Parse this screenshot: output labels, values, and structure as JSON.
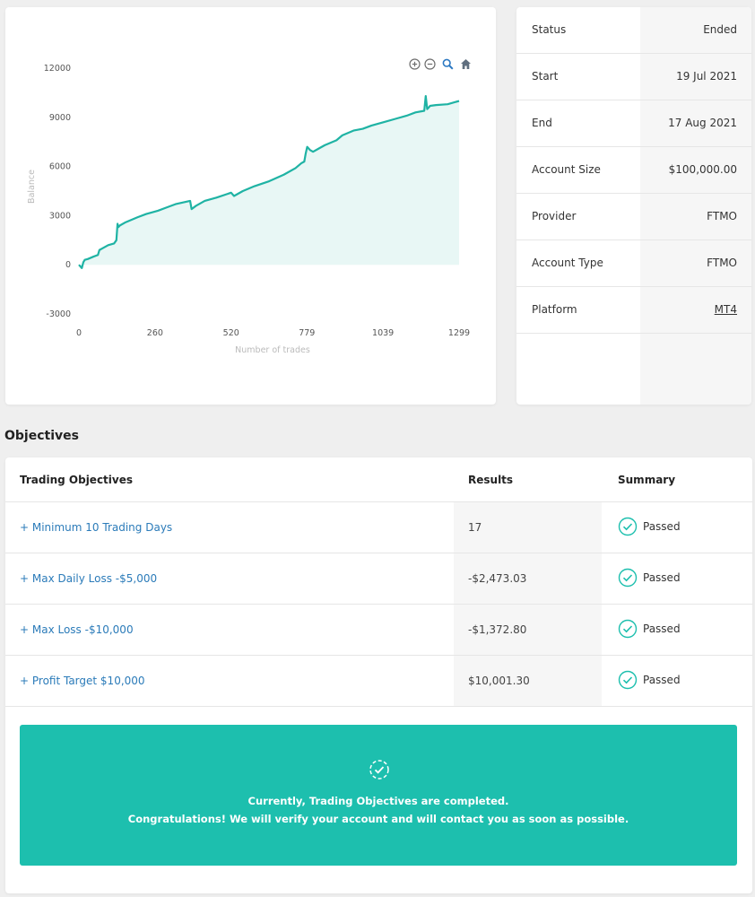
{
  "chart_toolbar": {
    "icons": [
      "zoom-in-icon",
      "zoom-out-icon",
      "zoom-select-icon",
      "reset-home-icon"
    ]
  },
  "chart_data": {
    "type": "area",
    "xlabel": "Number of trades",
    "ylabel": "Balance",
    "xlim": [
      0,
      1299
    ],
    "ylim": [
      -3000,
      12000
    ],
    "x_ticks": [
      "0",
      "260",
      "520",
      "779",
      "1039",
      "1299"
    ],
    "y_ticks": [
      "12000",
      "9000",
      "6000",
      "3000",
      "0",
      "-3000"
    ],
    "line_color": "#1fb3a4",
    "fill_color": "#e8f7f5",
    "series": [
      {
        "x": [
          0,
          10,
          15,
          20,
          30,
          50,
          65,
          70,
          80,
          100,
          120,
          128,
          132,
          135,
          140,
          160,
          200,
          230,
          270,
          300,
          330,
          380,
          385,
          400,
          430,
          470,
          520,
          530,
          560,
          600,
          650,
          700,
          740,
          760,
          770,
          775,
          780,
          790,
          800,
          820,
          840,
          880,
          900,
          940,
          970,
          1000,
          1040,
          1080,
          1120,
          1150,
          1180,
          1185,
          1190,
          1195,
          1200,
          1220,
          1260,
          1299
        ],
        "y": [
          0,
          -200,
          150,
          300,
          350,
          500,
          600,
          900,
          1000,
          1200,
          1300,
          1500,
          2500,
          2300,
          2400,
          2600,
          2900,
          3100,
          3300,
          3500,
          3700,
          3900,
          3400,
          3600,
          3900,
          4100,
          4400,
          4200,
          4500,
          4800,
          5100,
          5500,
          5900,
          6200,
          6300,
          6800,
          7200,
          7000,
          6900,
          7100,
          7300,
          7600,
          7900,
          8200,
          8300,
          8500,
          8700,
          8900,
          9100,
          9300,
          9400,
          10300,
          9500,
          9600,
          9700,
          9750,
          9800,
          10000
        ]
      }
    ]
  },
  "account_info": {
    "rows": [
      {
        "label": "Status",
        "value": "Ended"
      },
      {
        "label": "Start",
        "value": "19 Jul 2021"
      },
      {
        "label": "End",
        "value": "17 Aug 2021"
      },
      {
        "label": "Account Size",
        "value": "$100,000.00"
      },
      {
        "label": "Provider",
        "value": "FTMO"
      },
      {
        "label": "Account Type",
        "value": "FTMO"
      },
      {
        "label": "Platform",
        "value": "MT4"
      }
    ]
  },
  "objectives": {
    "heading": "Objectives",
    "columns": {
      "objective": "Trading Objectives",
      "results": "Results",
      "summary": "Summary"
    },
    "rows": [
      {
        "name": "+ Minimum 10 Trading Days",
        "result": "17",
        "summary": "Passed"
      },
      {
        "name": "+ Max Daily Loss -$5,000",
        "result": "-$2,473.03",
        "summary": "Passed"
      },
      {
        "name": "+ Max Loss -$10,000",
        "result": "-$1,372.80",
        "summary": "Passed"
      },
      {
        "name": "+ Profit Target $10,000",
        "result": "$10,001.30",
        "summary": "Passed"
      }
    ],
    "status_color": "#1dbfae",
    "banner": {
      "line1": "Currently, Trading Objectives are completed.",
      "line2": "Congratulations! We will verify your account and will contact you as soon as possible."
    }
  }
}
